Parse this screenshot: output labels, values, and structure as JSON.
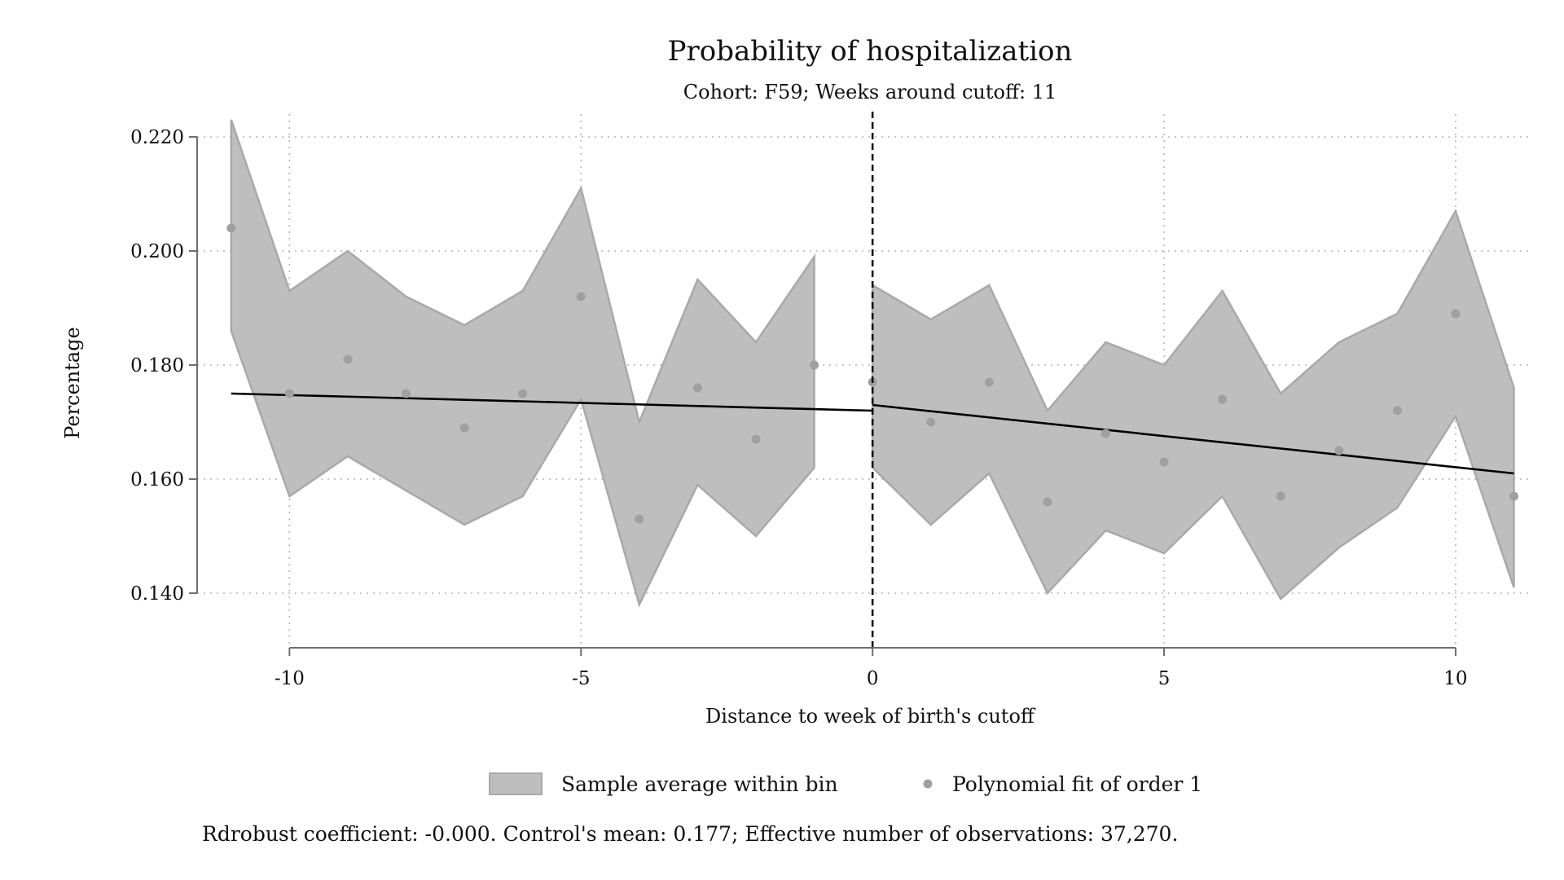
{
  "chart_data": {
    "type": "scatter",
    "title": "Probability of hospitalization",
    "subtitle": "Cohort: F59; Weeks around cutoff: 11",
    "xlabel": "Distance to week of birth's cutoff",
    "ylabel": "Percentage",
    "xlim": [
      -11.5,
      11.3
    ],
    "ylim": [
      0.134,
      0.224
    ],
    "x_ticks": [
      -10,
      -5,
      0,
      5,
      10
    ],
    "x_tick_labels": [
      "-10",
      "-5",
      "0",
      "5",
      "10"
    ],
    "y_ticks": [
      0.14,
      0.16,
      0.18,
      0.2,
      0.22
    ],
    "y_tick_labels": [
      "0.140",
      "0.160",
      "0.180",
      "0.200",
      "0.220"
    ],
    "grid": true,
    "cutoff_line_x": 0,
    "series": [
      {
        "name": "Sample average within bin",
        "kind": "confidence-band",
        "color": "#bebebe",
        "edge_color": "#a9a9a9",
        "segments": [
          {
            "x": [
              -11,
              -10,
              -9,
              -8,
              -7,
              -6,
              -5,
              -4,
              -3,
              -2,
              -1
            ],
            "lower": [
              0.186,
              0.157,
              0.164,
              0.158,
              0.152,
              0.157,
              0.174,
              0.138,
              0.159,
              0.15,
              0.162
            ],
            "upper": [
              0.223,
              0.193,
              0.2,
              0.192,
              0.187,
              0.193,
              0.211,
              0.17,
              0.195,
              0.184,
              0.199
            ]
          },
          {
            "x": [
              0,
              1,
              2,
              3,
              4,
              5,
              6,
              7,
              8,
              9,
              10,
              11
            ],
            "lower": [
              0.162,
              0.152,
              0.161,
              0.14,
              0.151,
              0.147,
              0.157,
              0.139,
              0.148,
              0.155,
              0.171,
              0.141
            ],
            "upper": [
              0.194,
              0.188,
              0.194,
              0.172,
              0.184,
              0.18,
              0.193,
              0.175,
              0.184,
              0.189,
              0.207,
              0.176
            ]
          }
        ]
      },
      {
        "name": "Polynomial fit of order 1",
        "kind": "points",
        "color": "#a0a0a0",
        "x": [
          -11,
          -10,
          -9,
          -8,
          -7,
          -6,
          -5,
          -4,
          -3,
          -2,
          -1,
          0,
          1,
          2,
          3,
          4,
          5,
          6,
          7,
          8,
          9,
          10,
          11
        ],
        "y": [
          0.204,
          0.175,
          0.181,
          0.175,
          0.169,
          0.175,
          0.192,
          0.153,
          0.176,
          0.167,
          0.18,
          0.177,
          0.17,
          0.177,
          0.156,
          0.168,
          0.163,
          0.174,
          0.157,
          0.165,
          0.172,
          0.189,
          0.157
        ]
      },
      {
        "kind": "fit-line",
        "color": "#000000",
        "segments": [
          {
            "x": [
              -11,
              0
            ],
            "y": [
              0.175,
              0.172
            ]
          },
          {
            "x": [
              0,
              11
            ],
            "y": [
              0.173,
              0.161
            ]
          }
        ]
      }
    ],
    "legend": {
      "placement": "bottom",
      "items": [
        {
          "label": "Sample average within bin",
          "symbol": "band"
        },
        {
          "label": "Polynomial fit of order 1",
          "symbol": "dot"
        }
      ]
    },
    "footnote": "Rdrobust coefficient: -0.000. Control's mean: 0.177; Effective number of observations: 37,270."
  }
}
